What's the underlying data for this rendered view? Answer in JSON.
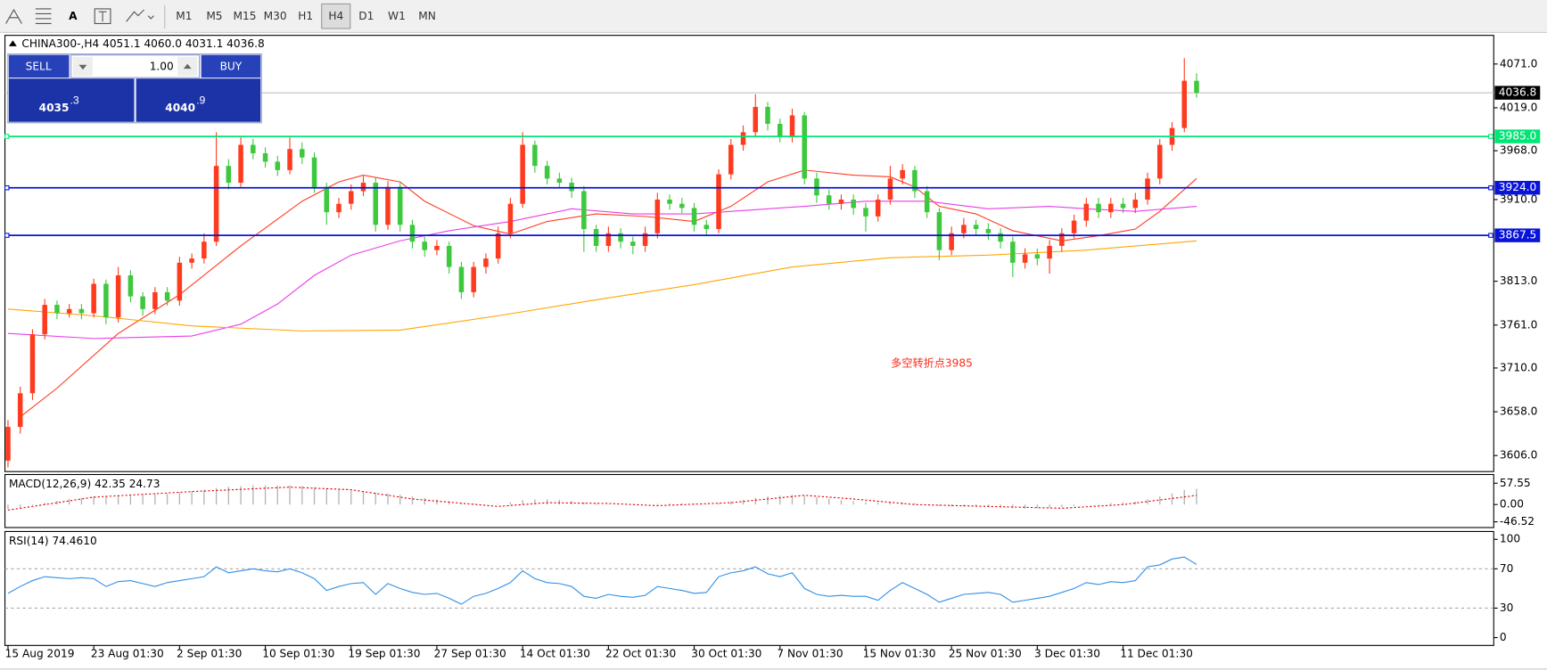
{
  "toolbar": {
    "text_tool": "A",
    "timeframes": [
      "M1",
      "M5",
      "M15",
      "M30",
      "H1",
      "H4",
      "D1",
      "W1",
      "MN"
    ],
    "active": "H4"
  },
  "trade_panel": {
    "sell": "SELL",
    "lots": "1.00",
    "buy": "BUY",
    "bid_main": "4035",
    "bid_pips": ".3",
    "ask_main": "4040",
    "ask_pips": ".9"
  },
  "chart_data": [
    {
      "type": "candlestick",
      "title": "CHINA300-,H4  4051.1 4060.0 4031.1 4036.8",
      "up_color": "#ff3b1f",
      "down_color": "#3ec83e",
      "open": [
        3600,
        3640,
        3680,
        3750,
        3785,
        3775,
        3780,
        3775,
        3810,
        3770,
        3820,
        3795,
        3780,
        3800,
        3790,
        3835,
        3840,
        3860,
        3950,
        3930,
        3975,
        3965,
        3955,
        3945,
        3970,
        3960,
        3925,
        3895,
        3905,
        3920,
        3930,
        3880,
        3925,
        3880,
        3860,
        3850,
        3855,
        3830,
        3800,
        3830,
        3840,
        3870,
        3905,
        3975,
        3950,
        3935,
        3930,
        3920,
        3875,
        3855,
        3870,
        3860,
        3855,
        3870,
        3910,
        3905,
        3900,
        3880,
        3875,
        3940,
        3975,
        3990,
        4020,
        4000,
        3985,
        4010,
        3935,
        3915,
        3905,
        3910,
        3900,
        3890,
        3910,
        3935,
        3945,
        3920,
        3895,
        3850,
        3870,
        3880,
        3875,
        3870,
        3860,
        3835,
        3845,
        3840,
        3855,
        3870,
        3885,
        3905,
        3895,
        3905,
        3900,
        3910,
        3935,
        3975,
        3995,
        4051.1
      ],
      "high": [
        3648,
        3688,
        3756,
        3792,
        3790,
        3786,
        3786,
        3816,
        3815,
        3830,
        3826,
        3800,
        3806,
        3806,
        3842,
        3846,
        3870,
        3990,
        3958,
        3985,
        3982,
        3972,
        3962,
        3985,
        3978,
        3966,
        3930,
        3912,
        3928,
        3938,
        3936,
        3932,
        3930,
        3886,
        3866,
        3862,
        3860,
        3836,
        3836,
        3846,
        3878,
        3912,
        3990,
        3980,
        3956,
        3942,
        3936,
        3926,
        3880,
        3878,
        3876,
        3866,
        3878,
        3918,
        3916,
        3912,
        3906,
        3886,
        3946,
        3982,
        3998,
        4035,
        4026,
        4006,
        4018,
        4014,
        3942,
        3922,
        3916,
        3916,
        3906,
        3916,
        3950,
        3952,
        3950,
        3926,
        3900,
        3878,
        3888,
        3886,
        3882,
        3876,
        3866,
        3852,
        3852,
        3862,
        3876,
        3892,
        3912,
        3912,
        3912,
        3912,
        3918,
        3942,
        3982,
        4002,
        4078,
        4060
      ],
      "low": [
        3592,
        3632,
        3672,
        3744,
        3768,
        3770,
        3768,
        3770,
        3762,
        3764,
        3788,
        3772,
        3774,
        3784,
        3784,
        3828,
        3834,
        3855,
        3922,
        3925,
        3958,
        3948,
        3938,
        3940,
        3952,
        3918,
        3880,
        3888,
        3898,
        3914,
        3872,
        3874,
        3872,
        3852,
        3842,
        3844,
        3822,
        3792,
        3794,
        3822,
        3834,
        3864,
        3900,
        3942,
        3928,
        3924,
        3912,
        3848,
        3848,
        3848,
        3852,
        3845,
        3848,
        3864,
        3898,
        3894,
        3872,
        3868,
        3870,
        3934,
        3968,
        3984,
        3992,
        3978,
        3978,
        3928,
        3906,
        3898,
        3898,
        3892,
        3872,
        3884,
        3904,
        3928,
        3912,
        3888,
        3838,
        3844,
        3864,
        3868,
        3862,
        3852,
        3818,
        3828,
        3832,
        3822,
        3848,
        3864,
        3878,
        3888,
        3888,
        3894,
        3894,
        3904,
        3928,
        3968,
        3990,
        4031.1
      ],
      "close": [
        3640,
        3680,
        3750,
        3785,
        3775,
        3780,
        3775,
        3810,
        3770,
        3820,
        3795,
        3780,
        3800,
        3790,
        3835,
        3840,
        3860,
        3950,
        3930,
        3975,
        3965,
        3955,
        3945,
        3970,
        3960,
        3925,
        3895,
        3905,
        3920,
        3930,
        3880,
        3925,
        3880,
        3860,
        3850,
        3855,
        3830,
        3800,
        3830,
        3840,
        3870,
        3905,
        3975,
        3950,
        3935,
        3930,
        3920,
        3875,
        3855,
        3870,
        3860,
        3855,
        3870,
        3910,
        3905,
        3900,
        3880,
        3875,
        3940,
        3975,
        3990,
        4020,
        4000,
        3985,
        4010,
        3935,
        3915,
        3905,
        3910,
        3900,
        3890,
        3910,
        3935,
        3945,
        3920,
        3895,
        3850,
        3870,
        3880,
        3875,
        3870,
        3860,
        3835,
        3845,
        3840,
        3855,
        3870,
        3885,
        3905,
        3895,
        3905,
        3900,
        3910,
        3935,
        3975,
        3995,
        4051.1,
        4036.8
      ],
      "lines": [
        {
          "color": "#ff3b1f",
          "x": [
            1,
            4,
            9,
            14,
            19,
            24,
            27,
            29,
            32,
            34,
            38,
            41,
            44,
            48,
            52,
            56,
            59,
            62,
            65,
            69,
            72,
            74,
            76,
            79,
            82,
            86,
            89,
            92,
            94,
            97
          ],
          "values": [
            3652,
            3686,
            3751,
            3797,
            3855,
            3908,
            3931,
            3939,
            3931,
            3908,
            3879,
            3869,
            3884,
            3893,
            3890,
            3884,
            3902,
            3931,
            3945,
            3939,
            3937,
            3925,
            3902,
            3893,
            3873,
            3861,
            3867,
            3875,
            3896,
            3935
          ]
        },
        {
          "color": "#e83ee8",
          "x": [
            0,
            7,
            15,
            19,
            22,
            25,
            28,
            32,
            36,
            41,
            46,
            51,
            56,
            61,
            65,
            70,
            75,
            80,
            85,
            88,
            92,
            97
          ],
          "values": [
            3751,
            3745,
            3748,
            3762,
            3786,
            3820,
            3844,
            3861,
            3873,
            3884,
            3899,
            3893,
            3893,
            3898,
            3902,
            3908,
            3908,
            3899,
            3902,
            3899,
            3896,
            3902
          ]
        },
        {
          "color": "#ffa500",
          "x": [
            0,
            7,
            15,
            24,
            32,
            40,
            48,
            56,
            64,
            72,
            80,
            88,
            97
          ],
          "values": [
            3780,
            3772,
            3760,
            3754,
            3755,
            3772,
            3791,
            3809,
            3830,
            3841,
            3844,
            3850,
            3861
          ]
        }
      ],
      "levels": [
        {
          "value": 3985,
          "label": "3985.0",
          "color": "#00e676"
        },
        {
          "value": 3924,
          "label": "3924.0",
          "color": "#0a14d8"
        },
        {
          "value": 3867.5,
          "label": "3867.5",
          "color": "#0a14d8"
        }
      ],
      "current_price": {
        "value": 4036.8,
        "label": "4036.8",
        "color": "#000000"
      },
      "annotation": "多空转折点3985",
      "xlim": [
        -0.25,
        121.25
      ],
      "ylim": [
        3587,
        4105
      ],
      "yticks": [
        {
          "value": 4071,
          "label": "4071.0"
        },
        {
          "value": 4019,
          "label": "4019.0"
        },
        {
          "value": 3968,
          "label": "3968.0"
        },
        {
          "value": 3910,
          "label": "3910.0"
        },
        {
          "value": 3813,
          "label": "3813.0"
        },
        {
          "value": 3761,
          "label": "3761.0"
        },
        {
          "value": 3710,
          "label": "3710.0"
        },
        {
          "value": 3658,
          "label": "3658.0"
        },
        {
          "value": 3606,
          "label": "3606.0"
        }
      ],
      "xticks": [
        {
          "value": 0,
          "label": "15 Aug 2019"
        },
        {
          "value": 7,
          "label": "23 Aug 01:30"
        },
        {
          "value": 14,
          "label": "2 Sep 01:30"
        },
        {
          "value": 21,
          "label": "10 Sep 01:30"
        },
        {
          "value": 28,
          "label": "19 Sep 01:30"
        },
        {
          "value": 35,
          "label": "27 Sep 01:30"
        },
        {
          "value": 42,
          "label": "14 Oct 01:30"
        },
        {
          "value": 49,
          "label": "22 Oct 01:30"
        },
        {
          "value": 56,
          "label": "30 Oct 01:30"
        },
        {
          "value": 63,
          "label": "7 Nov 01:30"
        },
        {
          "value": 70,
          "label": "15 Nov 01:30"
        },
        {
          "value": 77,
          "label": "25 Nov 01:30"
        },
        {
          "value": 84,
          "label": "3 Dec 01:30"
        },
        {
          "value": 91,
          "label": "11 Dec 01:30"
        }
      ]
    },
    {
      "type": "macd",
      "title": "MACD(12,26,9) 42.35 24.73",
      "xlim": [
        -0.25,
        121.25
      ],
      "ylim": [
        -62,
        81
      ],
      "yticks": [
        {
          "value": 57.55,
          "label": "57.55"
        },
        {
          "value": 0,
          "label": "0.00"
        },
        {
          "value": -46.52,
          "label": "-46.52"
        }
      ],
      "series": [
        {
          "color": "#b4b4b4",
          "values": [
            -12,
            -8,
            -2,
            5,
            10,
            15,
            18,
            22,
            24,
            26,
            27,
            28,
            29,
            30,
            33,
            36,
            40,
            45,
            48,
            50,
            52,
            52,
            51,
            52,
            50,
            46,
            42,
            40,
            38,
            36,
            32,
            30,
            26,
            22,
            18,
            14,
            10,
            5,
            2,
            0,
            2,
            6,
            12,
            14,
            14,
            13,
            10,
            6,
            3,
            1,
            0,
            -1,
            0,
            2,
            3,
            3,
            2,
            1,
            4,
            8,
            13,
            18,
            22,
            24,
            26,
            24,
            20,
            16,
            12,
            9,
            7,
            6,
            6,
            6,
            4,
            0,
            -4,
            -5,
            -5,
            -6,
            -7,
            -8,
            -10,
            -11,
            -10,
            -9,
            -7,
            -4,
            0,
            2,
            4,
            6,
            8,
            14,
            22,
            30,
            40,
            42.35
          ]
        },
        {
          "color": "#e00000",
          "style": "dotted",
          "x": [
            0,
            7,
            15,
            23,
            28,
            33,
            40,
            44,
            49,
            53,
            59,
            65,
            69,
            74,
            80,
            86,
            91,
            97
          ],
          "values": [
            -15,
            20,
            35,
            47,
            40,
            15,
            -5,
            5,
            3,
            -3,
            5,
            25,
            15,
            0,
            -5,
            -10,
            0,
            24.73
          ]
        }
      ]
    },
    {
      "type": "rsi",
      "title": "RSI(14) 74.4610",
      "xlim": [
        -0.25,
        121.25
      ],
      "ylim": [
        -8,
        108
      ],
      "yticks": [
        100,
        70,
        30,
        0
      ],
      "levels": [
        70,
        30
      ],
      "series": [
        {
          "color": "#2f8fe6",
          "values": [
            45,
            52,
            58,
            62,
            61,
            60,
            61,
            60,
            52,
            57,
            58,
            55,
            52,
            56,
            58,
            60,
            62,
            72,
            66,
            68,
            70,
            68,
            67,
            70,
            66,
            60,
            48,
            52,
            55,
            56,
            44,
            55,
            50,
            46,
            44,
            45,
            40,
            34,
            42,
            45,
            50,
            56,
            68,
            60,
            56,
            55,
            52,
            42,
            40,
            44,
            42,
            41,
            43,
            52,
            50,
            48,
            45,
            46,
            62,
            66,
            68,
            72,
            65,
            62,
            66,
            50,
            44,
            42,
            43,
            42,
            42,
            38,
            48,
            56,
            50,
            44,
            36,
            40,
            44,
            45,
            46,
            44,
            36,
            38,
            40,
            42,
            46,
            50,
            56,
            54,
            57,
            56,
            58,
            72,
            74,
            80,
            82,
            74.461
          ]
        }
      ]
    }
  ]
}
